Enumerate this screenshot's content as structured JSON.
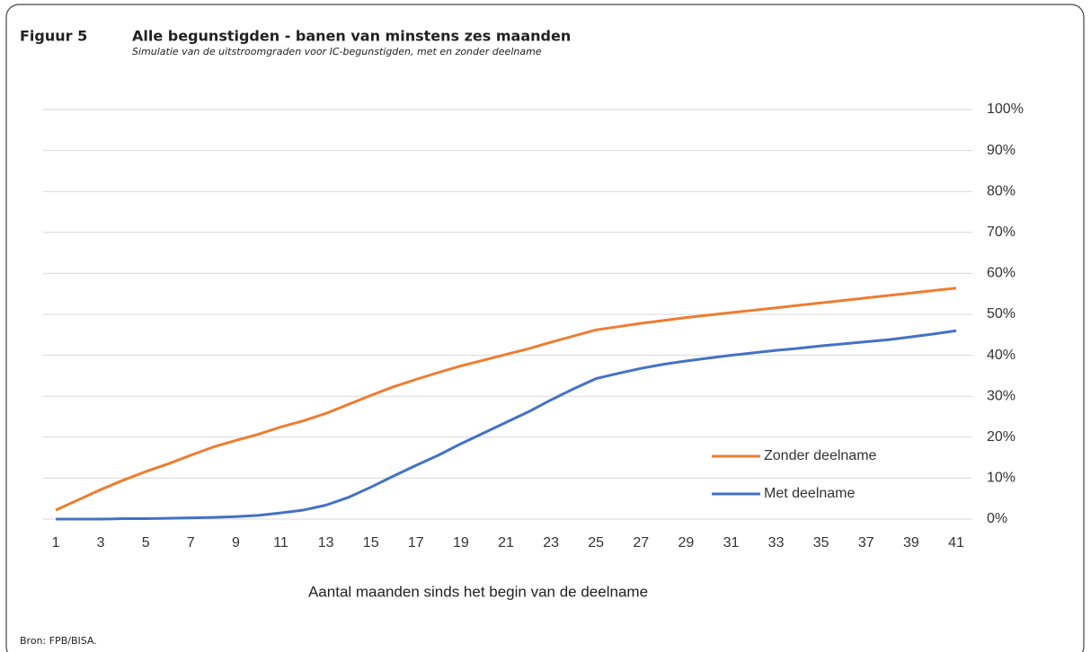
{
  "chart_data": {
    "type": "line",
    "figure_label": "Figuur 5",
    "title": "Alle begunstigden - banen van minstens zes maanden",
    "subtitle": "Simulatie van de uitstroomgraden voor IC-begunstigden, met en zonder deelname",
    "x_label": "Aantal maanden sinds het begin van de deelname",
    "source": "Bron: FPB/BISA.",
    "categories": [
      "1",
      null,
      "3",
      null,
      "5",
      null,
      "7",
      null,
      "9",
      null,
      "11",
      null,
      "13",
      null,
      "15",
      null,
      "17",
      null,
      "19",
      null,
      "21",
      null,
      "23",
      null,
      "25",
      null,
      "27",
      null,
      "29",
      null,
      "31",
      null,
      "33",
      null,
      "35",
      null,
      "37",
      null,
      "39",
      null,
      "41"
    ],
    "series": [
      {
        "name": "Zonder deelname",
        "color": "#ed7d31",
        "values": [
          2.2,
          4.7,
          7.2,
          9.5,
          11.6,
          13.5,
          15.6,
          17.6,
          19.2,
          20.7,
          22.5,
          24.0,
          25.8,
          28.0,
          30.2,
          32.3,
          34.1,
          35.8,
          37.4,
          38.8,
          40.2,
          41.6,
          43.2,
          44.7,
          46.2,
          47.0,
          47.8,
          48.5,
          49.2,
          49.8,
          50.4,
          51.0,
          51.6,
          52.2,
          52.8,
          53.4,
          54.0,
          54.6,
          55.2,
          55.8,
          56.4
        ]
      },
      {
        "name": "Met deelname",
        "color": "#4472c4",
        "values": [
          0,
          0,
          0,
          0.1,
          0.1,
          0.2,
          0.3,
          0.4,
          0.6,
          0.9,
          1.5,
          2.2,
          3.4,
          5.3,
          7.8,
          10.5,
          13.1,
          15.6,
          18.4,
          21.0,
          23.6,
          26.2,
          29.1,
          31.8,
          34.3,
          35.6,
          36.8,
          37.8,
          38.6,
          39.3,
          40.0,
          40.6,
          41.2,
          41.7,
          42.3,
          42.8,
          43.3,
          43.8,
          44.5,
          45.2,
          46.0
        ]
      }
    ],
    "ylim": [
      0,
      100
    ],
    "yticks": [
      {
        "value": 0,
        "label": "0%"
      },
      {
        "value": 10,
        "label": "10%"
      },
      {
        "value": 20,
        "label": "20%"
      },
      {
        "value": 30,
        "label": "30%"
      },
      {
        "value": 40,
        "label": "40%"
      },
      {
        "value": 50,
        "label": "50%"
      },
      {
        "value": 60,
        "label": "60%"
      },
      {
        "value": 70,
        "label": "70%"
      },
      {
        "value": 80,
        "label": "80%"
      },
      {
        "value": 90,
        "label": "90%"
      },
      {
        "value": 100,
        "label": "100%"
      }
    ],
    "grid": true,
    "legend": "lower right"
  }
}
